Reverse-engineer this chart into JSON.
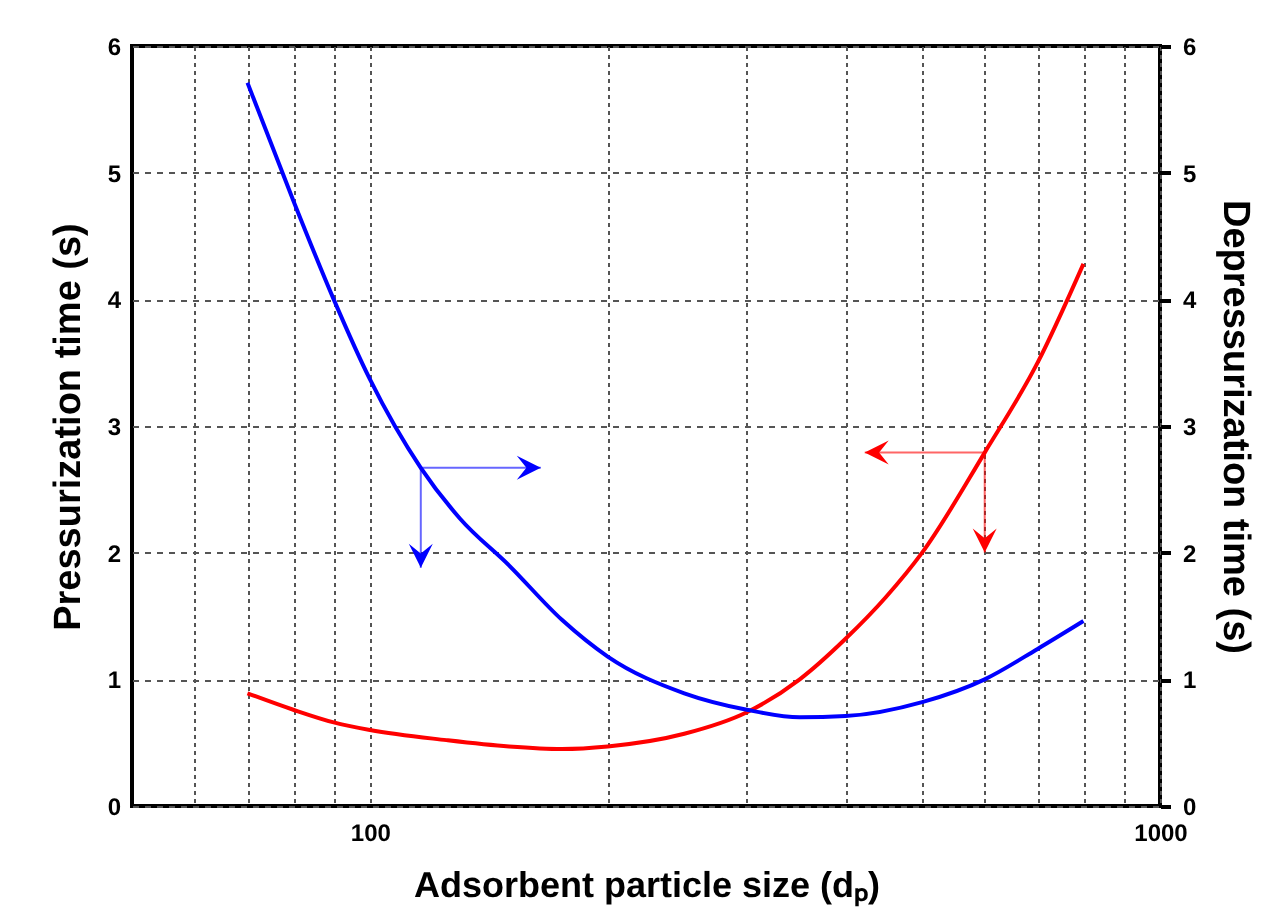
{
  "chart_data": {
    "type": "line",
    "xlabel": "Adsorbent particle size (dₚ)",
    "ylabel": "Pressurization time (s)",
    "y2label": "Depressurization time (s)",
    "log": "x",
    "grid": true,
    "xlim": [
      50,
      1000
    ],
    "xticks": [
      {
        "value": 60,
        "label": null
      },
      {
        "value": 70,
        "label": null
      },
      {
        "value": 80,
        "label": null
      },
      {
        "value": 90,
        "label": null
      },
      100,
      {
        "value": 200,
        "label": null
      },
      {
        "value": 300,
        "label": null
      },
      {
        "value": 400,
        "label": null
      },
      {
        "value": 500,
        "label": null
      },
      {
        "value": 600,
        "label": null
      },
      {
        "value": 700,
        "label": null
      },
      {
        "value": 800,
        "label": null
      },
      {
        "value": 900,
        "label": null
      },
      1000
    ],
    "ylim": [
      0,
      6
    ],
    "yticks": [
      0,
      1,
      2,
      3,
      4,
      5,
      6
    ],
    "y2lim": [
      0,
      6
    ],
    "y2ticks": [
      0,
      1,
      2,
      3,
      4,
      5,
      6
    ],
    "series": [
      {
        "color": "#ff0000",
        "axis": "y",
        "x": [
          70,
          80,
          90,
          100,
          125,
          150,
          175,
          200,
          250,
          300,
          350,
          400,
          450,
          500,
          600,
          700,
          800
        ],
        "values": [
          0.89,
          0.76,
          0.66,
          0.6,
          0.52,
          0.47,
          0.45,
          0.47,
          0.57,
          0.74,
          1.0,
          1.32,
          1.65,
          2.0,
          2.79,
          3.5,
          4.28
        ]
      },
      {
        "color": "#0000ff",
        "axis": "y2",
        "x": [
          70,
          80,
          90,
          100,
          116,
          130,
          150,
          175,
          200,
          250,
          300,
          350,
          400,
          500,
          600,
          700,
          800
        ],
        "values": [
          5.71,
          4.78,
          4.0,
          3.37,
          2.67,
          2.27,
          1.9,
          1.47,
          1.18,
          0.89,
          0.76,
          0.7,
          0.71,
          0.82,
          1.0,
          1.24,
          1.46
        ]
      }
    ]
  }
}
